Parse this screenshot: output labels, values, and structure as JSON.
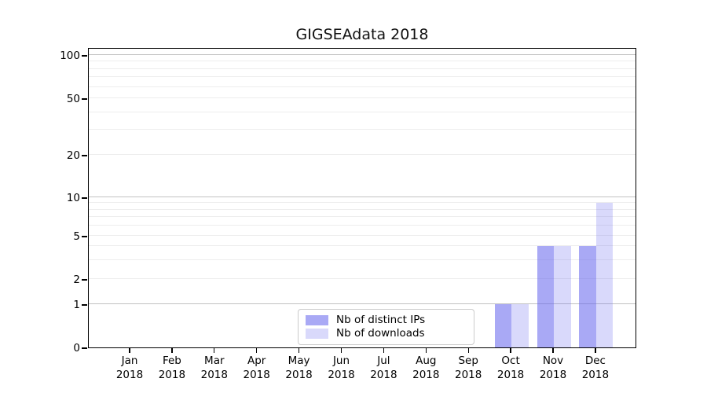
{
  "chart_data": {
    "type": "bar",
    "title": "GIGSEAdata 2018",
    "xlabel": "",
    "ylabel": "",
    "categories": [
      {
        "month": "Jan",
        "year": "2018"
      },
      {
        "month": "Feb",
        "year": "2018"
      },
      {
        "month": "Mar",
        "year": "2018"
      },
      {
        "month": "Apr",
        "year": "2018"
      },
      {
        "month": "May",
        "year": "2018"
      },
      {
        "month": "Jun",
        "year": "2018"
      },
      {
        "month": "Jul",
        "year": "2018"
      },
      {
        "month": "Aug",
        "year": "2018"
      },
      {
        "month": "Sep",
        "year": "2018"
      },
      {
        "month": "Oct",
        "year": "2018"
      },
      {
        "month": "Nov",
        "year": "2018"
      },
      {
        "month": "Dec",
        "year": "2018"
      }
    ],
    "series": [
      {
        "name": "Nb of distinct IPs",
        "values": [
          0,
          0,
          0,
          0,
          0,
          0,
          0,
          0,
          0,
          1,
          4,
          4
        ],
        "fill": "rgba(102,102,238,0.56)"
      },
      {
        "name": "Nb of downloads",
        "values": [
          0,
          0,
          0,
          0,
          0,
          0,
          0,
          0,
          0,
          1,
          4,
          9
        ],
        "fill": "rgba(102,102,238,0.25)"
      }
    ],
    "yticks": [
      0,
      1,
      2,
      5,
      10,
      20,
      50,
      100
    ],
    "major_grid_values": [
      1,
      10,
      100
    ],
    "minor_grid_values": [
      2,
      3,
      4,
      5,
      6,
      7,
      8,
      9,
      20,
      30,
      40,
      50,
      60,
      70,
      80,
      90
    ],
    "ylim": [
      0,
      113
    ],
    "scale": "log above 1, linear 0-1",
    "grid": true,
    "legend_position": "bottom-center"
  },
  "colors": {
    "bar_base": "#6666ee",
    "grid_major": "#c2c2c2",
    "grid_minor": "#ededed",
    "axis": "#000000",
    "text": "#000000",
    "legend_border": "#cbcbcb",
    "background": "#ffffff"
  }
}
